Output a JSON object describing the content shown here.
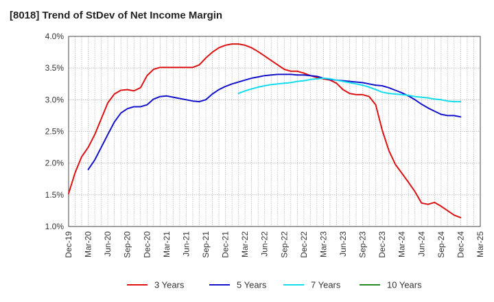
{
  "chart_data": {
    "type": "line",
    "title": "[8018]  Trend of StDev of Net Income Margin",
    "xlabel": "",
    "ylabel": "",
    "ylim": [
      1.0,
      4.0
    ],
    "yticks": [
      "4.0%",
      "3.5%",
      "3.0%",
      "2.5%",
      "2.0%",
      "1.5%",
      "1.0%"
    ],
    "ytick_values": [
      4.0,
      3.5,
      3.0,
      2.5,
      2.0,
      1.5,
      1.0
    ],
    "x_start": "Dec-19",
    "x_end": "Mar-25",
    "xticks": [
      "Dec-19",
      "Mar-20",
      "Jun-20",
      "Sep-20",
      "Dec-20",
      "Mar-21",
      "Jun-21",
      "Sep-21",
      "Dec-21",
      "Mar-22",
      "Jun-22",
      "Sep-22",
      "Dec-22",
      "Mar-23",
      "Jun-23",
      "Sep-23",
      "Dec-23",
      "Mar-24",
      "Jun-24",
      "Sep-24",
      "Dec-24",
      "Mar-25"
    ],
    "grid": true,
    "legend_position": "bottom",
    "series": [
      {
        "name": "3 Years",
        "color": "#dd1111",
        "x": [
          "Dec-19",
          "Jan-20",
          "Feb-20",
          "Mar-20",
          "Apr-20",
          "May-20",
          "Jun-20",
          "Jul-20",
          "Aug-20",
          "Sep-20",
          "Oct-20",
          "Nov-20",
          "Dec-20",
          "Jan-21",
          "Feb-21",
          "Mar-21",
          "Apr-21",
          "May-21",
          "Jun-21",
          "Jul-21",
          "Aug-21",
          "Sep-21",
          "Oct-21",
          "Nov-21",
          "Dec-21",
          "Jan-22",
          "Feb-22",
          "Mar-22",
          "Apr-22",
          "May-22",
          "Jun-22",
          "Jul-22",
          "Aug-22",
          "Sep-22",
          "Oct-22",
          "Nov-22",
          "Dec-22",
          "Jan-23",
          "Feb-23",
          "Mar-23",
          "Apr-23",
          "May-23",
          "Jun-23",
          "Jul-23",
          "Aug-23",
          "Sep-23",
          "Oct-23",
          "Nov-23",
          "Dec-23",
          "Jan-24",
          "Feb-24",
          "Mar-24",
          "Apr-24",
          "May-24",
          "Jun-24",
          "Jul-24",
          "Aug-24",
          "Sep-24",
          "Oct-24",
          "Nov-24",
          "Dec-24"
        ],
        "values": [
          1.52,
          1.85,
          2.1,
          2.25,
          2.45,
          2.7,
          2.95,
          3.09,
          3.15,
          3.16,
          3.14,
          3.19,
          3.38,
          3.48,
          3.51,
          3.51,
          3.51,
          3.51,
          3.51,
          3.51,
          3.55,
          3.66,
          3.75,
          3.82,
          3.86,
          3.88,
          3.88,
          3.86,
          3.82,
          3.76,
          3.69,
          3.62,
          3.55,
          3.48,
          3.45,
          3.45,
          3.42,
          3.38,
          3.35,
          3.33,
          3.31,
          3.26,
          3.16,
          3.1,
          3.08,
          3.08,
          3.05,
          2.92,
          2.52,
          2.2,
          1.98,
          1.84,
          1.7,
          1.55,
          1.37,
          1.35,
          1.38,
          1.32,
          1.25,
          1.18,
          1.14
        ]
      },
      {
        "name": "5 Years",
        "color": "#1111cc",
        "x": [
          "Mar-20",
          "Apr-20",
          "May-20",
          "Jun-20",
          "Jul-20",
          "Aug-20",
          "Sep-20",
          "Oct-20",
          "Nov-20",
          "Dec-20",
          "Jan-21",
          "Feb-21",
          "Mar-21",
          "Apr-21",
          "May-21",
          "Jun-21",
          "Jul-21",
          "Aug-21",
          "Sep-21",
          "Oct-21",
          "Nov-21",
          "Dec-21",
          "Jan-22",
          "Feb-22",
          "Mar-22",
          "Apr-22",
          "May-22",
          "Jun-22",
          "Jul-22",
          "Aug-22",
          "Sep-22",
          "Oct-22",
          "Nov-22",
          "Dec-22",
          "Jan-23",
          "Feb-23",
          "Mar-23",
          "Apr-23",
          "May-23",
          "Jun-23",
          "Jul-23",
          "Aug-23",
          "Sep-23",
          "Oct-23",
          "Nov-23",
          "Dec-23",
          "Jan-24",
          "Feb-24",
          "Mar-24",
          "Apr-24",
          "May-24",
          "Jun-24",
          "Jul-24",
          "Aug-24",
          "Sep-24",
          "Oct-24",
          "Nov-24",
          "Dec-24"
        ],
        "values": [
          1.9,
          2.05,
          2.25,
          2.45,
          2.65,
          2.79,
          2.86,
          2.89,
          2.89,
          2.92,
          3.01,
          3.05,
          3.06,
          3.04,
          3.02,
          3.0,
          2.98,
          2.97,
          3.0,
          3.09,
          3.16,
          3.21,
          3.25,
          3.28,
          3.31,
          3.34,
          3.36,
          3.38,
          3.39,
          3.4,
          3.4,
          3.4,
          3.39,
          3.39,
          3.38,
          3.37,
          3.34,
          3.32,
          3.31,
          3.3,
          3.29,
          3.28,
          3.27,
          3.25,
          3.23,
          3.22,
          3.19,
          3.15,
          3.11,
          3.06,
          3.0,
          2.93,
          2.87,
          2.82,
          2.77,
          2.75,
          2.75,
          2.73
        ]
      },
      {
        "name": "7 Years",
        "color": "#11ddee",
        "x": [
          "Feb-22",
          "Mar-22",
          "Apr-22",
          "May-22",
          "Jun-22",
          "Jul-22",
          "Aug-22",
          "Sep-22",
          "Oct-22",
          "Nov-22",
          "Dec-22",
          "Jan-23",
          "Feb-23",
          "Mar-23",
          "Apr-23",
          "May-23",
          "Jun-23",
          "Jul-23",
          "Aug-23",
          "Sep-23",
          "Oct-23",
          "Nov-23",
          "Dec-23",
          "Jan-24",
          "Feb-24",
          "Mar-24",
          "Apr-24",
          "May-24",
          "Jun-24",
          "Jul-24",
          "Aug-24",
          "Sep-24",
          "Oct-24",
          "Nov-24",
          "Dec-24"
        ],
        "values": [
          3.1,
          3.14,
          3.17,
          3.2,
          3.22,
          3.24,
          3.25,
          3.26,
          3.27,
          3.29,
          3.3,
          3.32,
          3.33,
          3.34,
          3.33,
          3.31,
          3.29,
          3.27,
          3.25,
          3.23,
          3.2,
          3.16,
          3.12,
          3.1,
          3.09,
          3.08,
          3.07,
          3.05,
          3.04,
          3.03,
          3.01,
          3.0,
          2.98,
          2.97,
          2.97
        ]
      },
      {
        "name": "10 Years",
        "color": "#228822",
        "x": [],
        "values": []
      }
    ]
  }
}
